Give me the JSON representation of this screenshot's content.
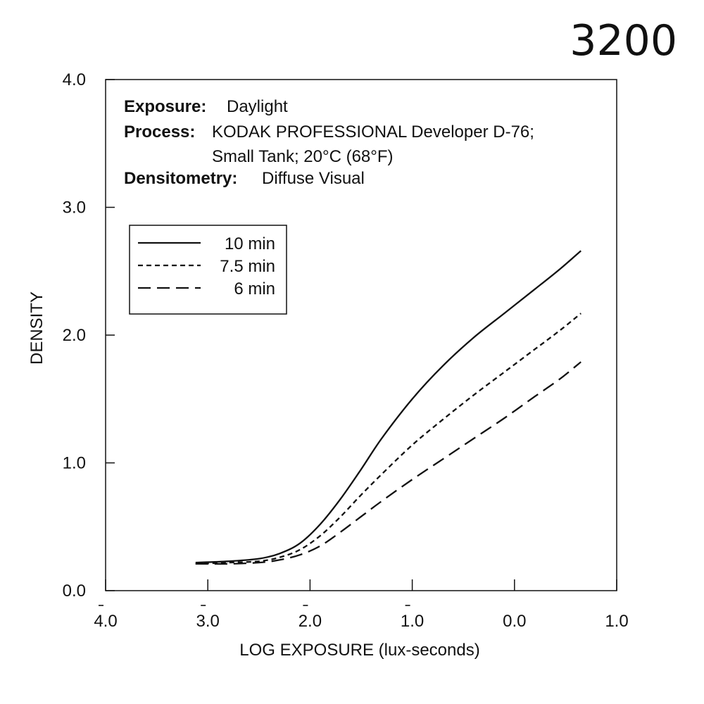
{
  "film_speed": "3200",
  "chart_data": {
    "type": "line",
    "xlabel": "LOG EXPOSURE (lux-seconds)",
    "ylabel": "DENSITY",
    "xlim": [
      -4.0,
      1.0
    ],
    "ylim": [
      0.0,
      4.0
    ],
    "x_ticks": [
      {
        "value": -4.0,
        "label": "4.0",
        "bar": true
      },
      {
        "value": -3.0,
        "label": "3.0",
        "bar": true
      },
      {
        "value": -2.0,
        "label": "2.0",
        "bar": true
      },
      {
        "value": -1.0,
        "label": "1.0",
        "bar": true
      },
      {
        "value": 0.0,
        "label": "0.0",
        "bar": false
      },
      {
        "value": 1.0,
        "label": "1.0",
        "bar": false
      }
    ],
    "y_ticks": [
      {
        "value": 0.0,
        "label": "0.0"
      },
      {
        "value": 1.0,
        "label": "1.0"
      },
      {
        "value": 2.0,
        "label": "2.0"
      },
      {
        "value": 3.0,
        "label": "3.0"
      },
      {
        "value": 4.0,
        "label": "4.0"
      }
    ],
    "conditions": [
      {
        "key": "Exposure:",
        "lines": [
          "Daylight"
        ]
      },
      {
        "key": "Process:",
        "lines": [
          "KODAK PROFESSIONAL Developer D-76;",
          "Small Tank; 20°C (68°F)"
        ]
      },
      {
        "key": "Densitometry:",
        "lines": [
          "Diffuse Visual"
        ]
      }
    ],
    "legend_position": "upper-left",
    "grid": false,
    "series": [
      {
        "name": "10 min",
        "line_style": "solid",
        "x": [
          -3.12,
          -2.8,
          -2.5,
          -2.3,
          -2.1,
          -1.9,
          -1.7,
          -1.5,
          -1.3,
          -1.0,
          -0.7,
          -0.4,
          -0.1,
          0.2,
          0.45,
          0.65
        ],
        "y": [
          0.22,
          0.23,
          0.25,
          0.29,
          0.37,
          0.52,
          0.72,
          0.95,
          1.19,
          1.5,
          1.76,
          1.98,
          2.17,
          2.36,
          2.52,
          2.66
        ]
      },
      {
        "name": "7.5 min",
        "line_style": "short-dash",
        "x": [
          -3.12,
          -2.8,
          -2.5,
          -2.3,
          -2.1,
          -1.9,
          -1.7,
          -1.5,
          -1.3,
          -1.0,
          -0.7,
          -0.4,
          -0.1,
          0.2,
          0.45,
          0.65
        ],
        "y": [
          0.21,
          0.22,
          0.23,
          0.26,
          0.32,
          0.43,
          0.58,
          0.75,
          0.91,
          1.14,
          1.34,
          1.53,
          1.71,
          1.89,
          2.04,
          2.17
        ]
      },
      {
        "name": "6 min",
        "line_style": "long-dash",
        "x": [
          -3.12,
          -2.8,
          -2.5,
          -2.3,
          -2.1,
          -1.9,
          -1.7,
          -1.5,
          -1.3,
          -1.0,
          -0.7,
          -0.4,
          -0.1,
          0.2,
          0.45,
          0.65
        ],
        "y": [
          0.21,
          0.21,
          0.22,
          0.24,
          0.28,
          0.35,
          0.46,
          0.58,
          0.7,
          0.87,
          1.03,
          1.19,
          1.35,
          1.52,
          1.66,
          1.79
        ]
      }
    ]
  }
}
